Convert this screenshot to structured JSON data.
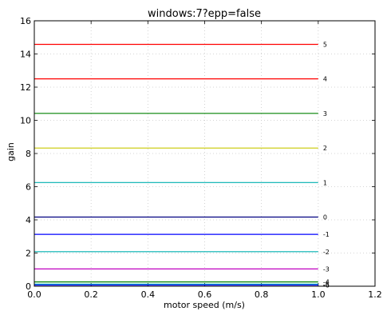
{
  "chart_data": {
    "type": "line",
    "title": "windows:7?epp=false",
    "xlabel": "motor speed (m/s)",
    "ylabel": "gain",
    "xlim": [
      0.0,
      1.2
    ],
    "ylim": [
      0,
      16
    ],
    "xticks": [
      0.0,
      0.2,
      0.4,
      0.6,
      0.8,
      1.0,
      1.2
    ],
    "xtick_labels": [
      "0.0",
      "0.2",
      "0.4",
      "0.6",
      "0.8",
      "1.0",
      "1.2"
    ],
    "yticks": [
      0,
      2,
      4,
      6,
      8,
      10,
      12,
      14,
      16
    ],
    "ytick_labels": [
      "0",
      "2",
      "4",
      "6",
      "8",
      "10",
      "12",
      "14",
      "16"
    ],
    "grid": true,
    "series": [
      {
        "label": "5",
        "color": "#ff0000",
        "x": [
          0.0,
          1.0
        ],
        "y": [
          14.58,
          14.58
        ]
      },
      {
        "label": "4",
        "color": "#ff0000",
        "x": [
          0.0,
          1.0
        ],
        "y": [
          12.5,
          12.5
        ]
      },
      {
        "label": "3",
        "color": "#008000",
        "x": [
          0.0,
          1.0
        ],
        "y": [
          10.42,
          10.42
        ]
      },
      {
        "label": "2",
        "color": "#c8c800",
        "x": [
          0.0,
          1.0
        ],
        "y": [
          8.33,
          8.33
        ]
      },
      {
        "label": "1",
        "color": "#00b0b0",
        "x": [
          0.0,
          1.0
        ],
        "y": [
          6.25,
          6.25
        ]
      },
      {
        "label": "0",
        "color": "#000080",
        "x": [
          0.0,
          1.0
        ],
        "y": [
          4.17,
          4.17
        ]
      },
      {
        "label": "-1",
        "color": "#0000ff",
        "x": [
          0.0,
          1.0
        ],
        "y": [
          3.13,
          3.13
        ]
      },
      {
        "label": "-2",
        "color": "#00b0b0",
        "x": [
          0.0,
          1.0
        ],
        "y": [
          2.08,
          2.08
        ]
      },
      {
        "label": "-3",
        "color": "#c000c0",
        "x": [
          0.0,
          1.0
        ],
        "y": [
          1.04,
          1.04
        ]
      },
      {
        "label": "-4",
        "color": "#008000",
        "x": [
          0.0,
          1.0
        ],
        "y": [
          0.26,
          0.26
        ]
      },
      {
        "label": "-5",
        "color": "#00b0b0",
        "x": [
          0.0,
          1.0
        ],
        "y": [
          0.13,
          0.13
        ]
      },
      {
        "label": "-6",
        "color": "#0000ff",
        "x": [
          0.0,
          1.0
        ],
        "y": [
          0.07,
          0.07
        ]
      }
    ]
  }
}
